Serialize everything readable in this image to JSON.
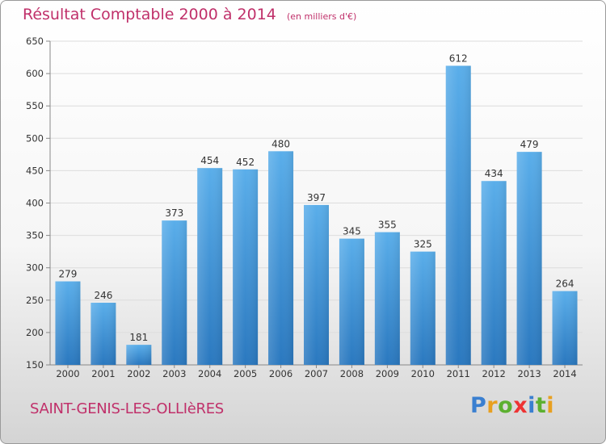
{
  "header": {
    "title": "Résultat Comptable 2000 à 2014",
    "unit": "(en milliers d'€)"
  },
  "footer": {
    "place": "SAINT-GENIS-LES-OLLIèRES",
    "logo": {
      "letters": [
        "P",
        "r",
        "o",
        "x",
        "i",
        "t",
        "i"
      ],
      "colors": [
        "#3a7fd0",
        "#e8a020",
        "#5cb030",
        "#e33",
        "#3a7fd0",
        "#5cb030",
        "#e8a020"
      ]
    }
  },
  "chart_data": {
    "type": "bar",
    "categories": [
      "2000",
      "2001",
      "2002",
      "2003",
      "2004",
      "2005",
      "2006",
      "2007",
      "2008",
      "2009",
      "2010",
      "2011",
      "2012",
      "2013",
      "2014"
    ],
    "values": [
      279,
      246,
      181,
      373,
      454,
      452,
      480,
      397,
      345,
      355,
      325,
      612,
      434,
      479,
      264
    ],
    "title": "Résultat Comptable 2000 à 2014",
    "ylim": [
      150,
      650
    ],
    "yticks": [
      150,
      200,
      250,
      300,
      350,
      400,
      450,
      500,
      550,
      600,
      650
    ],
    "grid": true,
    "bar_color": "#3a8fd8"
  }
}
